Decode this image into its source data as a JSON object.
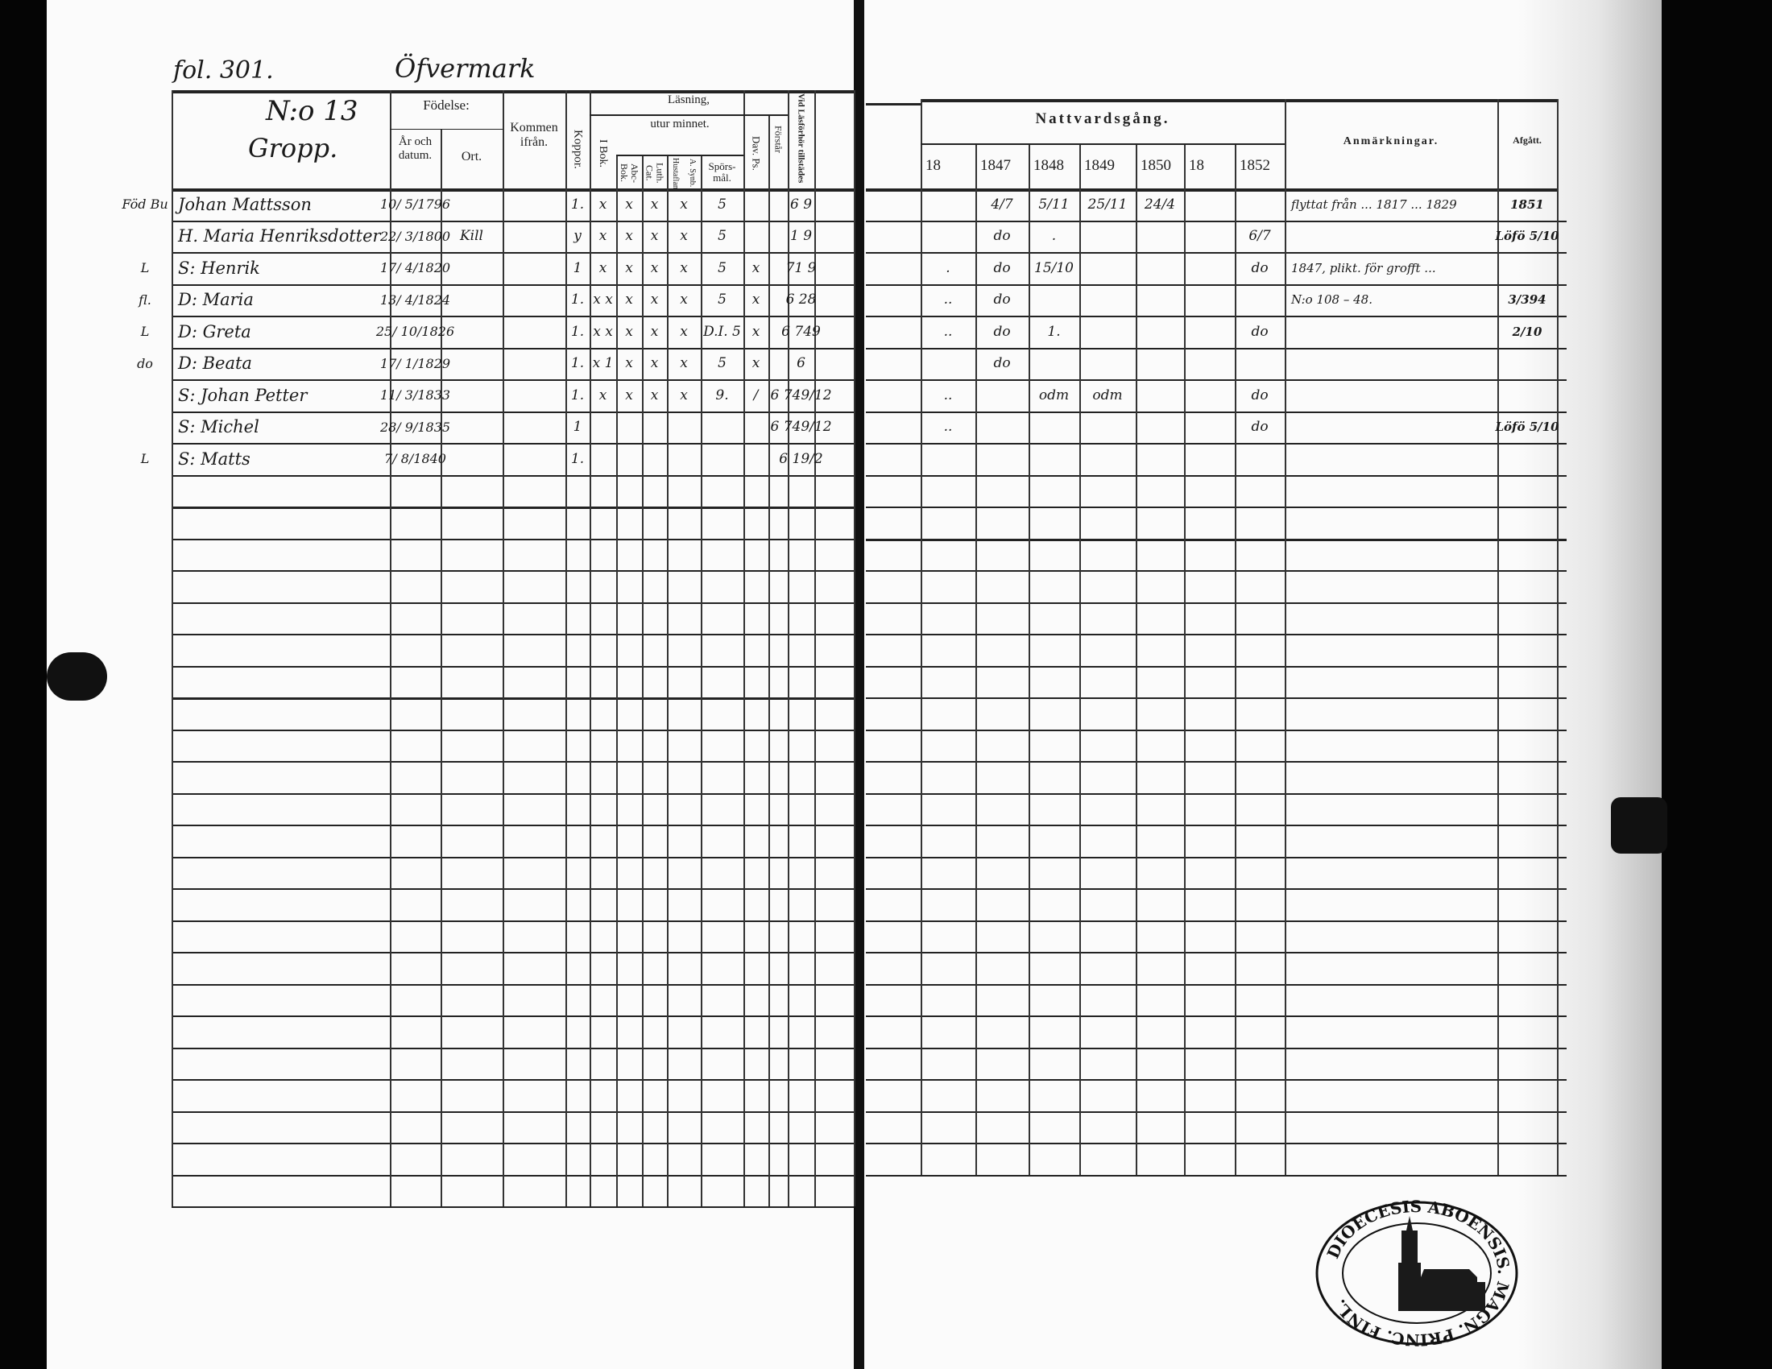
{
  "left_page": {
    "folio": "fol. 301.",
    "village": "Öfvermark",
    "house_number": "N:o 13",
    "farm_name": "Gropp.",
    "headers": {
      "fodelse": "Födelse:",
      "ar_och_datum": "År och datum.",
      "ort": "Ort.",
      "kommen_ifran": "Kommen ifrån.",
      "koppor": "Koppor.",
      "lasning": "Läsning,",
      "utur_minnet": "utur minnet.",
      "i_bok": "I Bok.",
      "abc_bok": "Abc-Bok.",
      "luth_cat": "Luth. Cat.",
      "hustaflan": "Hustaflan",
      "a_synb": "A. Synb.",
      "sporsmal": "Spörs-mål.",
      "dav_ps": "Dav. Ps.",
      "forstar": "Förstår",
      "vid_lasforhor": "Vid Läsförhör tillstädes"
    },
    "rows": [
      {
        "margin": "Föd Bu",
        "name": "Johan Mattsson",
        "birth": "10/ 5/1796",
        "ort": "",
        "kommen": "",
        "koppor": "1.",
        "i_bok": "x",
        "abc": "x",
        "luth": "x",
        "hustaflan": "x",
        "sporsmal": "5",
        "dav": "",
        "forstar": "",
        "vid": "6 9"
      },
      {
        "margin": "",
        "name": "H. Maria Henriksdotter",
        "birth": "22/ 3/1800",
        "ort": "Kill",
        "kommen": "",
        "koppor": "y",
        "i_bok": "x",
        "abc": "x",
        "luth": "x",
        "hustaflan": "x",
        "sporsmal": "5",
        "dav": "",
        "forstar": "",
        "vid": "1 9"
      },
      {
        "margin": "L",
        "name": "S: Henrik",
        "birth": "17/ 4/1820",
        "ort": "",
        "kommen": "",
        "koppor": "1",
        "i_bok": "x",
        "abc": "x",
        "luth": "x",
        "hustaflan": "x",
        "sporsmal": "5",
        "dav": "x",
        "forstar": "",
        "vid": "71 9"
      },
      {
        "margin": "fl.",
        "name": "D: Maria",
        "birth": "13/ 4/1824",
        "ort": "",
        "kommen": "",
        "koppor": "1.",
        "i_bok": "x x",
        "abc": "x",
        "luth": "x",
        "hustaflan": "x",
        "sporsmal": "5",
        "dav": "x",
        "forstar": "",
        "vid": "6 28"
      },
      {
        "margin": "L",
        "name": "D: Greta",
        "birth": "25/ 10/1826",
        "ort": "",
        "kommen": "",
        "koppor": "1.",
        "i_bok": "x x",
        "abc": "x",
        "luth": "x",
        "hustaflan": "x",
        "sporsmal": "D.I. 5",
        "dav": "x",
        "forstar": "",
        "vid": "6 749"
      },
      {
        "margin": "do",
        "name": "D: Beata",
        "birth": "17/ 1/1829",
        "ort": "",
        "kommen": "",
        "koppor": "1.",
        "i_bok": "x 1",
        "abc": "x",
        "luth": "x",
        "hustaflan": "x",
        "sporsmal": "5",
        "dav": "x",
        "forstar": "",
        "vid": "6"
      },
      {
        "margin": "",
        "name": "S: Johan Petter",
        "birth": "11/ 3/1833",
        "ort": "",
        "kommen": "",
        "koppor": "1.",
        "i_bok": "x",
        "abc": "x",
        "luth": "x",
        "hustaflan": "x",
        "sporsmal": "9.",
        "dav": "/",
        "forstar": "",
        "vid": "6 749/12"
      },
      {
        "margin": "",
        "name": "S: Michel",
        "birth": "28/ 9/1835",
        "ort": "",
        "kommen": "",
        "koppor": "1",
        "i_bok": "",
        "abc": "",
        "luth": "",
        "hustaflan": "",
        "sporsmal": "",
        "dav": "",
        "forstar": "",
        "vid": "6 749/12"
      },
      {
        "margin": "L",
        "name": "S: Matts",
        "birth": "7/ 8/1840",
        "ort": "",
        "kommen": "",
        "koppor": "1.",
        "i_bok": "",
        "abc": "",
        "luth": "",
        "hustaflan": "",
        "sporsmal": "",
        "dav": "",
        "forstar": "",
        "vid": "6 19/2"
      }
    ]
  },
  "right_page": {
    "headers": {
      "nattvardsgang": "Nattvardsgång.",
      "years": [
        "18",
        "1847",
        "1848",
        "1849",
        "1850",
        "18",
        "1852"
      ],
      "anmarkningar": "Anmärkningar.",
      "afgatt": "Afgått."
    },
    "rows": [
      {
        "y": [
          "",
          "4/7",
          "5/11",
          "25/11",
          "24/4",
          "",
          ""
        ],
        "anm": "flyttat från ... 1817 ... 1829",
        "afg": "1851"
      },
      {
        "y": [
          "",
          "do",
          ".",
          "",
          "",
          "",
          "6/7"
        ],
        "anm": "",
        "afg": "Löfö 5/10"
      },
      {
        "y": [
          ".",
          "do",
          "15/10",
          "",
          "",
          "",
          "do"
        ],
        "anm": "1847, plikt. för grofft ...",
        "afg": ""
      },
      {
        "y": [
          "..",
          "do",
          "",
          "",
          "",
          "",
          ""
        ],
        "anm": "N:o 108 – 48.",
        "afg": "3/394"
      },
      {
        "y": [
          "..",
          "do",
          "1.",
          "",
          "",
          "",
          "do"
        ],
        "anm": "",
        "afg": "2/10"
      },
      {
        "y": [
          "",
          "do",
          "",
          "",
          "",
          "",
          ""
        ],
        "anm": "",
        "afg": ""
      },
      {
        "y": [
          "..",
          "",
          "odm",
          "odm",
          "",
          "",
          "do"
        ],
        "anm": "",
        "afg": ""
      },
      {
        "y": [
          "..",
          "",
          "",
          "",
          "",
          "",
          "do"
        ],
        "anm": "",
        "afg": "Löfö 5/10"
      },
      {
        "y": [
          "",
          "",
          "",
          "",
          "",
          "",
          ""
        ],
        "anm": "",
        "afg": ""
      }
    ]
  },
  "stamp": {
    "text": "DIOECESIS ABOENSIS. MAGN. PRINC. FINL."
  }
}
